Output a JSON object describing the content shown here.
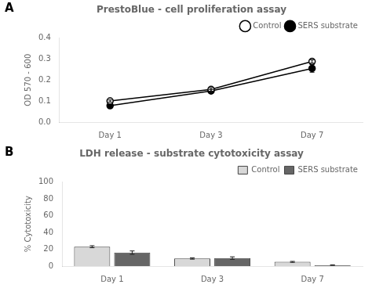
{
  "chart_data": [
    {
      "type": "line",
      "title": "PrestoBlue - cell proliferation assay",
      "annotations": [
        "A"
      ],
      "categories": [
        "Day 1",
        "Day 3",
        "Day 7"
      ],
      "series": [
        {
          "name": "Control",
          "color": "#000000",
          "marker": "open_circle",
          "values": [
            0.1,
            0.155,
            0.288
          ],
          "errors": [
            0.005,
            0.008,
            0.008
          ]
        },
        {
          "name": "SERS substrate",
          "color": "#000000",
          "marker": "circle",
          "values": [
            0.078,
            0.148,
            0.255
          ],
          "errors": [
            0.004,
            0.007,
            0.018
          ]
        }
      ],
      "ylabel": "OD 570 - 600",
      "ylim": [
        0.0,
        0.4
      ],
      "yticks": [
        {
          "value": 0,
          "label": "0.0"
        },
        0.1,
        0.2,
        0.3,
        0.4
      ],
      "grid": false,
      "legend": "top"
    },
    {
      "type": "bar",
      "title": "LDH release - substrate cytotoxicity assay",
      "annotations": [
        "B"
      ],
      "categories": [
        "Day 1",
        "Day 3",
        "Day 7"
      ],
      "series": [
        {
          "name": "Control",
          "color": "#d8d8d8",
          "values": [
            23.0,
            9.0,
            5.0
          ],
          "errors": [
            1.2,
            0.8,
            0.6
          ]
        },
        {
          "name": "SERS substrate",
          "color": "#666666",
          "values": [
            16.0,
            9.5,
            1.2
          ],
          "errors": [
            2.0,
            1.5,
            0.3
          ]
        }
      ],
      "ylabel": "% Cytotoxicity",
      "ylim": [
        0.0,
        100.0
      ],
      "yticks": [
        0,
        20,
        40,
        60,
        80,
        100
      ],
      "grid": false,
      "legend": "top"
    }
  ]
}
